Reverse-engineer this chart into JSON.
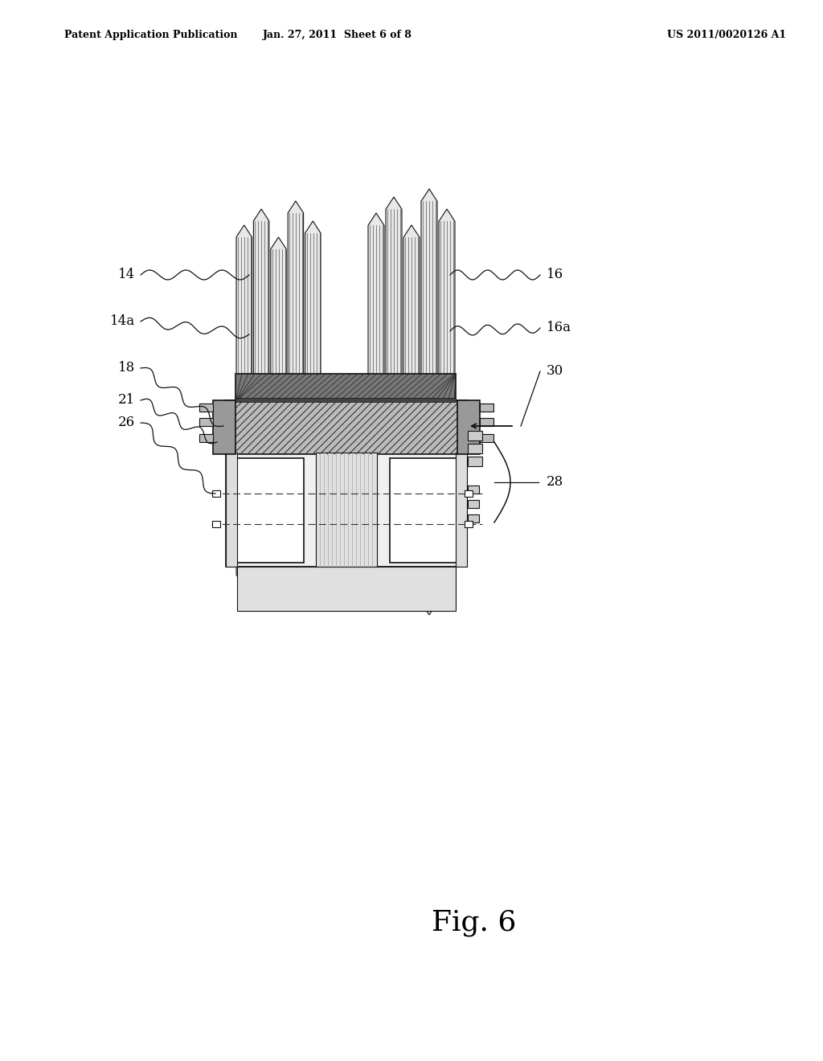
{
  "bg_color": "#ffffff",
  "header_left": "Patent Application Publication",
  "header_mid": "Jan. 27, 2011  Sheet 6 of 8",
  "header_right": "US 2011/0020126 A1",
  "fig_label": "Fig. 6",
  "line_color": "#111111",
  "dark_fill": "#555555",
  "med_fill": "#888888",
  "light_fill": "#cccccc",
  "white_fill": "#ffffff",
  "hatch_fill": "#999999"
}
